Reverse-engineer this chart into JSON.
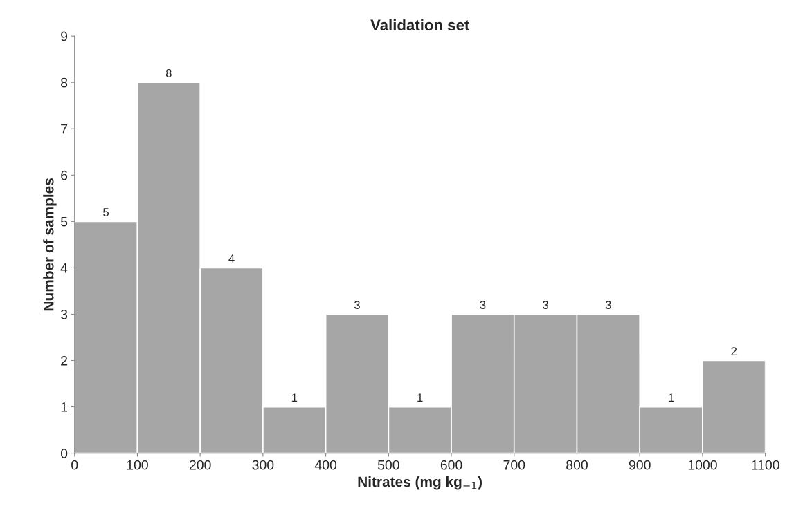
{
  "chart_data": {
    "type": "histogram",
    "title": "Validation set",
    "xlabel": "Nitrates (mg kg$_{−1}$)",
    "ylabel": "Number of samples",
    "bins": [
      0,
      100,
      200,
      300,
      400,
      500,
      600,
      700,
      800,
      900,
      1000,
      1100
    ],
    "values": [
      5,
      8,
      4,
      1,
      3,
      1,
      3,
      3,
      3,
      1,
      2
    ],
    "color": "#a6a6a6",
    "xlim": [
      0,
      1100
    ],
    "xticks": [
      0,
      100,
      200,
      300,
      400,
      500,
      600,
      700,
      800,
      900,
      1000,
      1100
    ],
    "ylim": [
      0,
      9
    ],
    "yticks": [
      0,
      1,
      2,
      3,
      4,
      5,
      6,
      7,
      8,
      9
    ],
    "data_labels": true,
    "grid": false,
    "legend": false
  }
}
